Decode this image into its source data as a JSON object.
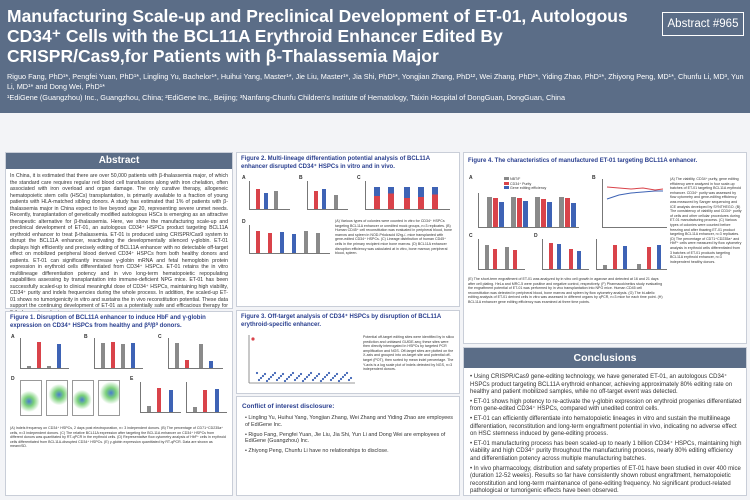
{
  "header": {
    "title": "Manufacturing Scale-up and Preclinical Development of ET-01, Autologous CD34⁺ Cells with the BCL11A Erythroid Enhancer Edited By CRISPR/Cas9,for Patients with β-Thalassemia Major",
    "badge": "Abstract #965",
    "authors": "Riguo Fang, PhD¹*, Pengfei Yuan, PhD¹*, Lingling Yu, Bachelor¹*, Huihui Yang, Master¹*, Jie Liu, Master¹*, Jia Shi, PhD¹*, Yongjian Zhang, PhD¹², Wei Zhang, PhD¹*, Yiding Zhao, PhD¹*, Zhiyong Peng, MD¹*, Chunfu Li, MD³, Yun Li, MD¹* and Dong Wei, PhD¹*",
    "affiliations": "¹EdiGene (Guangzhou) Inc., Guangzhou, China; ²EdiGene Inc., Beijing; ³Nanfang-Chunfu Children's Institute of Hematology, Taixin Hospital of DongGuan, DongGuan, China"
  },
  "abstract": {
    "heading": "Abstract",
    "text": "In China, it is estimated that there are over 50,000 patients with β-thalassemia major, of which the standard care requires regular red blood cell transfusions along with iron chelation, often associated with iron overload and organ damage. The only curative therapy, allogeneic hematopoietic stem cells (HSCs) transplantation, is primarily available to a fraction of young patients with HLA-matched sibling donors. A study has estimated that 1% of patients with β-thalassemia major in China expect to live beyond age 20, representing severe unmet needs. Recently, transplantation of genetically modified autologous HSCs is emerging as an attractive therapeutic alternative for β-thalassemia. Here, we show the manufacturing scale-up and preclinical development of ET-01, an autologous CD34⁺ HSPCs product targeting BCL11A erythroid enhancer to treat β-thalassemia. ET-01 is produced using CRISPR/Cas9 system to disrupt the BCL11A enhancer, reactivating the developmentally silenced γ-globin. ET-01 displays high efficiently and precisely editing of BCL11A enhancer with no detectable off-target effect on mobilized peripheral blood derived CD34⁺ HSPCs from both healthy donors and patients. ET-01 can significantly increase γ-globin mRNA and fetal hemoglobin protein expression in erythroid cells differentiated from CD34⁺ HSPCs. ET-01 retains the in vitro multilineage differentiation potency and in vivo long-term hematopoietic repopulating capabilities assessing by transplantation into immune-deficient NPG mice. ET-01 has been successfully scaled-up to clinical meaningful dose of CD34⁺ HSPCs, maintaining high viability, CD34⁺ purity and indels frequencies during the whole process. In addition, the scaled-up ET-01 shows no tumorigenicity in vitro and sustains the in vivo reconstitution potential. These data support the continuing development of ET-01 as a potentially safe and efficacious therapy for β-thalassemia patients."
  },
  "figures": {
    "fig1": {
      "title": "Figure 1. Disruption of BCL11A enhancer to induce HbF and γ-globin expression on CD34⁺ HSPCs from healthy and β⁰/β⁰ donors.",
      "caption": "(A) Indels frequency on CD34⁺ HSPCs, 2 days post electroporation, n= 3 independent donors. (B) The percentage of CD71⁺CD235a⁺ cells, n=3 independent donors. (C) The relative BCL11A expression after targeting the BCL11A enhancer on CD34⁺ HSPCs from different donors was quantitated by RT-qPCR in the erythroid cells. (D) Representative flow cytometry analysis of HbF⁺ cells in erythroid cells differentiated from BCL11A-disrupted CD34⁺ HSPCs. (E) γ-globin expression quantitated by RT-qPCR. Data are shown as mean±SD."
    },
    "fig2": {
      "title": "Figure 2. Multi-lineage differentiation potential analysis of BCL11A enhancer disrupted CD34⁺ HSPCs in vitro and in vivo.",
      "caption": "(A) Various types of colonies were counted in vitro for CD34⁺ HSPCs targeting BCL11A enhancer or unedited mock groups, n=3 replicates. (B) Human CD45⁺ cell reconstitution was evaluated in peripheral blood, bone marrow and spleen in NOD-Prkdcscid Il2rg-/- mice transplanted with gene-edited CD34⁺ HSPCs. (C) Lineage distribution of human CD45⁺ cells in the primary recipient mice bone marrow. (D) BCL11A enhancer disruption efficiency was calculated at in vitro, bone marrow, peripheral blood, spleen."
    },
    "fig3": {
      "title": "Figure 3. Off-target analysis of CD34⁺ HSPCs by disruption of BCL11A erythroid-specific enhancer.",
      "caption": "Potential off-target editing sites were identified by in silico prediction and unbiased GUIDE-seq; these sites were then directly interrogated in HSPCs by targeted PCR amplification and NGS. Off-target sites are plotted on the X-axis and grouped into on-target site and potential off-target (POT), then sorted by mean indel percentage. The Y-axis is a log scale plot of indels detected by NGS, n=3 independent donors."
    },
    "fig4": {
      "title": "Figure 4. The characteristics of manufactured ET-01 targeting BCL11A enhancer.",
      "caption_a": "(A) The viability, CD34⁺ purity, gene editing efficiency were analyzed in four scale-up batches of ET-01 targeting BCL11A erythroid enhancer. CD34⁺ purity was assessed by flow cytometry and gene-editing efficiency was measured by Sanger sequencing and ICE analysis developed by SYNTHEGO. (B) The consistency of viability and CD34⁺ purity of cells and other cellular procedures during ET-01 manufacturing process. (C) Various types of colonies were counted before freezing and after thawing ET-01 product targeting BCL11A enhancer, n=3 replicates. (D) The percentage of CD71⁺CD235a⁺ and HbF⁺ cells were measured by flow cytometry analysis in erythroid cells differentiated from 3 batches of ET-01 products targeting BCL11A erythroid enhancer, n=3 independent healthy donors.",
      "caption_b": "(E) The short-term engraftment of ET-01 was analyzed by in vitro cell growth in agarose and detected at 16 and 21 days after cell plating. HeLa and MRC-5 were positive and negative control, respectively. (F) Pharmacokinetics study evaluating the engraftment potential of ET-01 was performed by in vivo transplantation into NPG mice. Human CD45 cell reconstitution was detected in peripheral blood, bone marrow and spleen by flow cytometry analysis. (G) The bi-allelic editing analysis of ET-01 derived cells in vitro was assessed in different organs by qPCR, n=3 mice for each time point. (H) BCL11A enhancer gene editing efficiency was examined at three time points."
    },
    "chart_fig4": {
      "legend": [
        "NBT/F",
        "CD34⁺ Purity",
        "Gene editing efficiency"
      ]
    }
  },
  "conflict": {
    "heading": "Conflict of interest disclosure:",
    "items": [
      "Lingling Yu, Huihui Yang, Yongjian Zhang, Wei Zhang and Yiding Zhao are employees of EdiGene Inc.",
      "Riguo Fang, Pengfei Yuan, Jie Liu, Jia Shi, Yun Li and Dong Wei are employees of EdiGene (Guangzhou) Inc.",
      "Zhiyong Peng, Chunfu Li have no relationships to disclose."
    ]
  },
  "conclusions": {
    "heading": "Conclusions",
    "items": [
      "Using CRISPR/Cas9 gene-editing technology, we have generated ET-01, an autologous CD34⁺ HSPCs product targeting BCL11A erythroid enhancer, achieving approximately 80% editing rate on healthy and patient mobilized samples, while no off-target event was detected.",
      "ET-01 shows high potency to re-activate the γ-globin expression on erythroid progenies differentiated from gene-edited CD34⁺ HSPCs, compared with unedited control cells.",
      "ET-01 can efficiently differentiate into hematopoietic lineages in vitro and sustain the multilineage differentiation, reconstitution and long-term engraftment potential in vivo, indicating no adverse effect on HSC stemness induced by gene-editing process.",
      "ET-01 manufacturing process has been scaled-up to nearly 1 billion CD34⁺ HSPCs, maintaining high viability and high CD34⁺ purity throughout the manufacturing process, nearly 80% editing efficiency and differentiation potency across multiple manufacturing batches.",
      "In vivo pharmacology, distribution and safety properties of ET-01 have been studied in over 400 mice (duration 12-52 weeks). Results so far have consistently shown robust engraftment, hematopoietic reconstitution and long-term maintenance of gene-editing frequency. No significant product-related pathological or tumorigenic effects have been observed."
    ]
  },
  "colors": {
    "header": "#5b6d87",
    "accent": "#2a3f8f",
    "bar_red": "#d9434a",
    "bar_blue": "#3e63b5",
    "bar_gray": "#8a8a8a"
  }
}
